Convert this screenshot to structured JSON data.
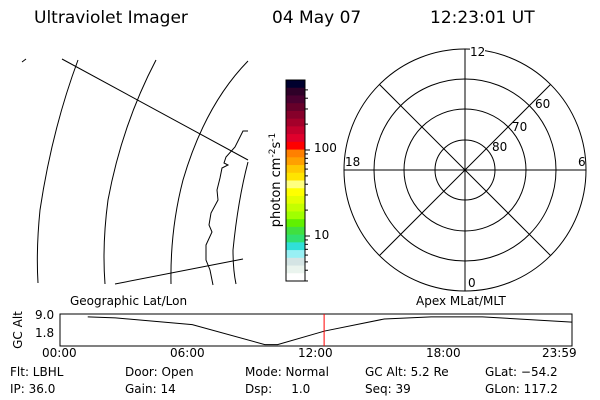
{
  "header": {
    "instrument": "Ultraviolet Imager",
    "date": "04 May 07",
    "time": "12:23:01 UT"
  },
  "colorbar": {
    "label": "photon cm^-2 s^-1",
    "label_base": "photon cm",
    "label_exp1": "-2",
    "label_s": "s",
    "label_exp2": "-1",
    "ticks": [
      "100",
      "10"
    ],
    "scale": "log",
    "colors": [
      "#00002e",
      "#2e0028",
      "#4a0030",
      "#66002a",
      "#86002a",
      "#a4002a",
      "#c4002c",
      "#e0002c",
      "#ff0000",
      "#ff8000",
      "#ffa000",
      "#ffc800",
      "#ffe400",
      "#ffff80",
      "#ffff00",
      "#e4ff00",
      "#c4ff00",
      "#a0ff00",
      "#60f000",
      "#40e040",
      "#30e070",
      "#30e0d8",
      "#98f0f4",
      "#d4e4e4",
      "#eaf4ee",
      "#ffffff"
    ]
  },
  "polar_plot": {
    "mlt_labels": [
      "12",
      "18",
      "6",
      "0"
    ],
    "lat_labels": [
      "60",
      "70",
      "80"
    ]
  },
  "chart_data": {
    "type": "line",
    "title": "",
    "xlabel": "",
    "ylabel": "GC Alt",
    "left_label": "Geographic Lat/Lon",
    "right_label": "Apex MLat/MLT",
    "x_ticks": [
      "00:00",
      "06:00",
      "12:00",
      "18:00",
      "23:59"
    ],
    "y_ticks": [
      "9.0",
      "1.8"
    ],
    "xlim_hours": [
      0,
      24
    ],
    "ylim": [
      1.0,
      10.0
    ],
    "x_hours": [
      1.3,
      2.6,
      6.2,
      9.6,
      10.2,
      12.4,
      15.2,
      17.4,
      19.8,
      24.0
    ],
    "y": [
      9.2,
      8.9,
      7.0,
      1.4,
      1.4,
      5.2,
      8.6,
      9.2,
      9.2,
      7.7
    ],
    "current_time_hours": 12.38,
    "current_marker_color": "#ff0000"
  },
  "status": {
    "row1": [
      "Flt: LBHL",
      "Door: Open",
      "Mode: Normal",
      "GC Alt: 5.2 Re",
      "GLat: −54.2"
    ],
    "row2": [
      "IP: 36.0",
      "Gain: 14",
      "Dsp:     1.0",
      "Seq: 39",
      "GLon: 117.2"
    ]
  }
}
